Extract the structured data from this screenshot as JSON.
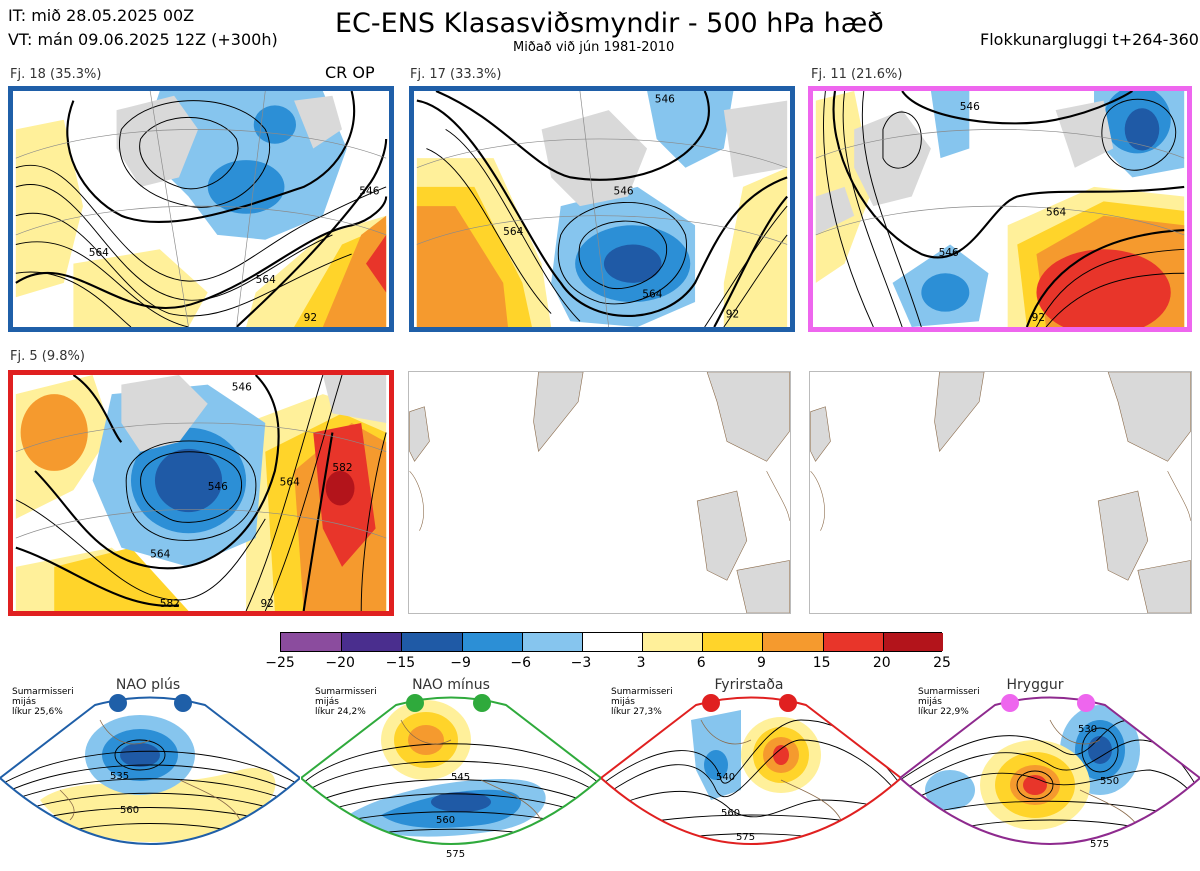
{
  "header": {
    "it_line": "IT: mið 28.05.2025 00Z",
    "vt_line": "VT: mán 09.06.2025 12Z  (+300h)",
    "title": "EC-ENS Klasasviðsmyndir - 500 hPa hæð",
    "subtitle": "Miðað við jún 1981-2010",
    "window": "Flokkunargluggi t+264-360"
  },
  "clusters": [
    {
      "label": "Fj. 18 (35.3%)",
      "tag": "CR OP",
      "frame_color": "#1f5fa8",
      "contour_labels": [
        "546",
        "564",
        "564",
        "92"
      ]
    },
    {
      "label": "Fj. 17 (33.3%)",
      "tag": "",
      "frame_color": "#1f5fa8",
      "contour_labels": [
        "546",
        "546",
        "564",
        "564",
        "92"
      ]
    },
    {
      "label": "Fj. 11 (21.6%)",
      "tag": "",
      "frame_color": "#ee66ee",
      "contour_labels": [
        "546",
        "564",
        "546",
        "92"
      ]
    },
    {
      "label": "Fj. 5 (9.8%)",
      "tag": "",
      "frame_color": "#e02020",
      "contour_labels": [
        "546",
        "564",
        "564",
        "582",
        "582",
        "92",
        "546"
      ]
    }
  ],
  "colorbar": {
    "ticks": [
      "−25",
      "−20",
      "−15",
      "−9",
      "−6",
      "−3",
      "3",
      "6",
      "9",
      "15",
      "20",
      "25"
    ],
    "colors": [
      "#8b4c9e",
      "#4a2e8e",
      "#1f5aa6",
      "#2c8fd6",
      "#86c5ee",
      "#ffffff",
      "#fff09a",
      "#ffd42a",
      "#f59a2e",
      "#e8352a",
      "#b3141b"
    ]
  },
  "regimes": [
    {
      "name": "NAO plús",
      "info": "Sumarmisseri\nmijás\nlíkur 25,6%",
      "color": "#1f5fa8",
      "dot_color": "#1f5fa8",
      "labels": [
        "535",
        "560"
      ]
    },
    {
      "name": "NAO mínus",
      "info": "Sumarmisseri\nmijás\nlíkur 24,2%",
      "color": "#2faa3c",
      "dot_color": "#2faa3c",
      "labels": [
        "545",
        "560",
        "575"
      ]
    },
    {
      "name": "Fyrirstaða",
      "info": "Sumarmisseri\nmijás\nlíkur 27,3%",
      "color": "#e02020",
      "dot_color": "#e02020",
      "labels": [
        "540",
        "560",
        "575"
      ]
    },
    {
      "name": "Hryggur",
      "info": "Sumarmisseri\nmijás\nlíkur 22,9%",
      "color": "#8e2a8e",
      "dot_color": "#ee66ee",
      "labels": [
        "530",
        "550",
        "575"
      ]
    }
  ]
}
